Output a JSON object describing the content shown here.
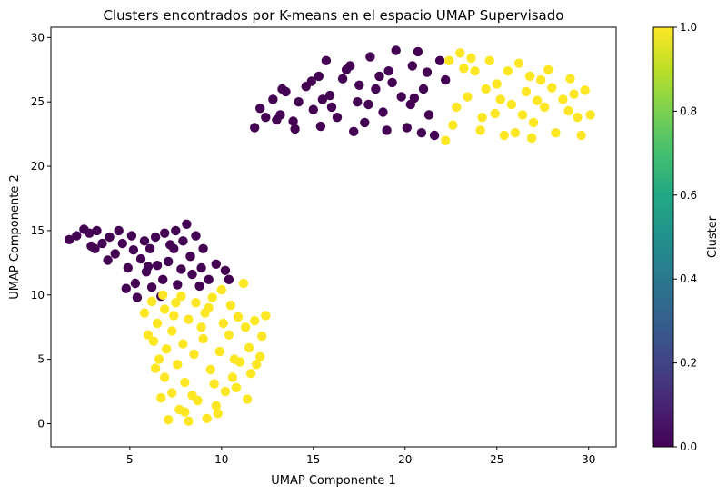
{
  "colors": {
    "cluster0": "#440154",
    "cluster1": "#fde725",
    "axis": "#000000",
    "background": "#ffffff"
  },
  "chart_data": {
    "type": "scatter",
    "title": "Clusters encontrados por K-means en el espacio UMAP Supervisado",
    "xlabel": "UMAP Componente 1",
    "ylabel": "UMAP Componente 2",
    "xlim": [
      0.7,
      31.5
    ],
    "ylim": [
      -1.8,
      30.8
    ],
    "xticks": [
      5,
      10,
      15,
      20,
      25,
      30
    ],
    "yticks": [
      0,
      5,
      10,
      15,
      20,
      25,
      30
    ],
    "grid": false,
    "colorbar": {
      "label": "Cluster",
      "colormap": "viridis",
      "range": [
        0.0,
        1.0
      ],
      "ticks": [
        0.0,
        0.2,
        0.4,
        0.6,
        0.8,
        1.0
      ],
      "tick_labels": [
        "0.0",
        "0.2",
        "0.4",
        "0.6",
        "0.8",
        "1.0"
      ]
    },
    "series": [
      {
        "cluster": 0,
        "color": "#440154",
        "points": [
          [
            1.7,
            14.3
          ],
          [
            2.1,
            14.6
          ],
          [
            2.5,
            15.1
          ],
          [
            2.8,
            14.8
          ],
          [
            3.2,
            15.0
          ],
          [
            3.5,
            14.0
          ],
          [
            2.9,
            13.8
          ],
          [
            3.9,
            14.5
          ],
          [
            4.2,
            13.2
          ],
          [
            4.6,
            14.0
          ],
          [
            3.8,
            12.7
          ],
          [
            4.9,
            12.1
          ],
          [
            5.2,
            13.5
          ],
          [
            5.6,
            12.8
          ],
          [
            6.1,
            13.6
          ],
          [
            5.9,
            11.8
          ],
          [
            5.3,
            10.9
          ],
          [
            6.5,
            12.3
          ],
          [
            6.8,
            11.2
          ],
          [
            7.1,
            12.6
          ],
          [
            7.4,
            13.6
          ],
          [
            7.9,
            14.2
          ],
          [
            8.3,
            13.0
          ],
          [
            8.6,
            14.6
          ],
          [
            8.1,
            15.5
          ],
          [
            7.5,
            15.0
          ],
          [
            6.9,
            14.8
          ],
          [
            8.9,
            12.1
          ],
          [
            9.3,
            11.2
          ],
          [
            9.7,
            12.4
          ],
          [
            10.2,
            11.9
          ],
          [
            8.4,
            11.6
          ],
          [
            7.6,
            10.8
          ],
          [
            6.2,
            10.6
          ],
          [
            5.4,
            9.8
          ],
          [
            6.7,
            9.9
          ],
          [
            4.8,
            10.5
          ],
          [
            5.1,
            14.6
          ],
          [
            4.4,
            15.0
          ],
          [
            3.1,
            13.6
          ],
          [
            7.2,
            13.9
          ],
          [
            9.0,
            13.6
          ],
          [
            5.8,
            14.2
          ],
          [
            6.4,
            14.5
          ],
          [
            8.8,
            10.7
          ],
          [
            10.4,
            11.2
          ],
          [
            6.0,
            12.2
          ],
          [
            7.8,
            12.0
          ],
          [
            11.8,
            23.0
          ],
          [
            12.1,
            24.5
          ],
          [
            12.4,
            23.8
          ],
          [
            12.8,
            25.2
          ],
          [
            13.2,
            24.0
          ],
          [
            13.5,
            25.8
          ],
          [
            13.9,
            23.5
          ],
          [
            14.2,
            25.0
          ],
          [
            14.6,
            26.2
          ],
          [
            15.0,
            24.4
          ],
          [
            15.3,
            27.0
          ],
          [
            15.7,
            28.2
          ],
          [
            15.9,
            25.5
          ],
          [
            16.3,
            23.8
          ],
          [
            16.6,
            26.8
          ],
          [
            17.0,
            27.8
          ],
          [
            17.4,
            25.0
          ],
          [
            17.8,
            23.4
          ],
          [
            18.1,
            28.5
          ],
          [
            18.4,
            26.0
          ],
          [
            18.8,
            24.2
          ],
          [
            19.1,
            27.4
          ],
          [
            19.5,
            29.0
          ],
          [
            19.8,
            25.4
          ],
          [
            20.1,
            23.0
          ],
          [
            20.4,
            27.8
          ],
          [
            20.7,
            28.9
          ],
          [
            21.0,
            26.0
          ],
          [
            21.3,
            24.0
          ],
          [
            21.6,
            22.4
          ],
          [
            21.9,
            28.2
          ],
          [
            20.3,
            24.8
          ],
          [
            19.0,
            22.8
          ],
          [
            17.2,
            22.7
          ],
          [
            15.4,
            23.1
          ],
          [
            14.0,
            22.9
          ],
          [
            13.0,
            23.6
          ],
          [
            16.0,
            24.6
          ],
          [
            18.0,
            24.8
          ],
          [
            21.2,
            27.3
          ],
          [
            20.9,
            22.6
          ],
          [
            22.2,
            26.7
          ],
          [
            18.6,
            27.0
          ],
          [
            16.8,
            27.5
          ],
          [
            14.9,
            26.6
          ],
          [
            13.3,
            26.0
          ],
          [
            15.5,
            25.2
          ],
          [
            17.5,
            26.3
          ],
          [
            19.3,
            26.5
          ],
          [
            20.5,
            25.3
          ]
        ]
      },
      {
        "cluster": 1,
        "color": "#fde725",
        "points": [
          [
            5.8,
            8.6
          ],
          [
            6.2,
            9.5
          ],
          [
            6.5,
            7.8
          ],
          [
            6.9,
            8.9
          ],
          [
            7.3,
            7.2
          ],
          [
            7.8,
            9.9
          ],
          [
            8.2,
            8.1
          ],
          [
            8.6,
            9.4
          ],
          [
            9.1,
            8.6
          ],
          [
            9.5,
            9.8
          ],
          [
            10.0,
            10.4
          ],
          [
            10.5,
            9.2
          ],
          [
            10.9,
            8.3
          ],
          [
            11.3,
            7.5
          ],
          [
            11.8,
            8.0
          ],
          [
            12.2,
            6.8
          ],
          [
            11.5,
            5.9
          ],
          [
            11.0,
            4.8
          ],
          [
            10.6,
            3.6
          ],
          [
            10.2,
            2.5
          ],
          [
            9.7,
            1.4
          ],
          [
            9.2,
            0.4
          ],
          [
            8.7,
            1.8
          ],
          [
            8.2,
            0.2
          ],
          [
            7.7,
            1.1
          ],
          [
            7.3,
            2.4
          ],
          [
            6.9,
            3.6
          ],
          [
            6.6,
            5.0
          ],
          [
            6.3,
            6.4
          ],
          [
            7.0,
            5.8
          ],
          [
            7.6,
            4.6
          ],
          [
            8.0,
            3.2
          ],
          [
            8.5,
            5.4
          ],
          [
            9.0,
            6.6
          ],
          [
            9.4,
            4.2
          ],
          [
            9.9,
            5.6
          ],
          [
            10.4,
            6.9
          ],
          [
            10.8,
            2.8
          ],
          [
            11.6,
            3.9
          ],
          [
            12.1,
            5.2
          ],
          [
            12.4,
            8.4
          ],
          [
            11.2,
            10.9
          ],
          [
            6.8,
            10.0
          ],
          [
            6.0,
            6.9
          ],
          [
            7.4,
            8.4
          ],
          [
            8.9,
            7.5
          ],
          [
            9.6,
            3.1
          ],
          [
            8.4,
            2.2
          ],
          [
            7.1,
            0.3
          ],
          [
            7.9,
            6.2
          ],
          [
            10.1,
            7.8
          ],
          [
            11.9,
            4.6
          ],
          [
            6.4,
            4.3
          ],
          [
            9.3,
            9.0
          ],
          [
            8.0,
            0.9
          ],
          [
            10.7,
            5.0
          ],
          [
            11.4,
            1.9
          ],
          [
            6.7,
            2.0
          ],
          [
            9.8,
            0.8
          ],
          [
            7.5,
            9.4
          ],
          [
            22.2,
            22.0
          ],
          [
            22.6,
            23.2
          ],
          [
            23.0,
            28.8
          ],
          [
            23.4,
            25.4
          ],
          [
            23.8,
            27.4
          ],
          [
            24.2,
            23.8
          ],
          [
            24.6,
            28.2
          ],
          [
            25.0,
            26.4
          ],
          [
            25.4,
            22.4
          ],
          [
            25.8,
            24.8
          ],
          [
            26.2,
            28.0
          ],
          [
            26.6,
            25.8
          ],
          [
            27.0,
            23.4
          ],
          [
            27.4,
            26.7
          ],
          [
            27.8,
            27.5
          ],
          [
            28.2,
            22.6
          ],
          [
            28.6,
            25.2
          ],
          [
            29.0,
            26.8
          ],
          [
            29.4,
            23.8
          ],
          [
            29.8,
            25.9
          ],
          [
            30.1,
            24.0
          ],
          [
            29.6,
            22.4
          ],
          [
            28.9,
            24.3
          ],
          [
            27.6,
            24.6
          ],
          [
            26.9,
            22.2
          ],
          [
            26.0,
            22.6
          ],
          [
            24.9,
            24.1
          ],
          [
            24.4,
            26.0
          ],
          [
            23.2,
            27.6
          ],
          [
            22.8,
            24.6
          ],
          [
            25.6,
            27.4
          ],
          [
            26.4,
            24.0
          ],
          [
            28.0,
            26.1
          ],
          [
            24.1,
            22.8
          ],
          [
            27.2,
            25.1
          ],
          [
            29.2,
            25.6
          ],
          [
            23.6,
            28.4
          ],
          [
            25.2,
            25.2
          ],
          [
            26.8,
            27.0
          ],
          [
            22.4,
            28.2
          ]
        ]
      }
    ]
  }
}
